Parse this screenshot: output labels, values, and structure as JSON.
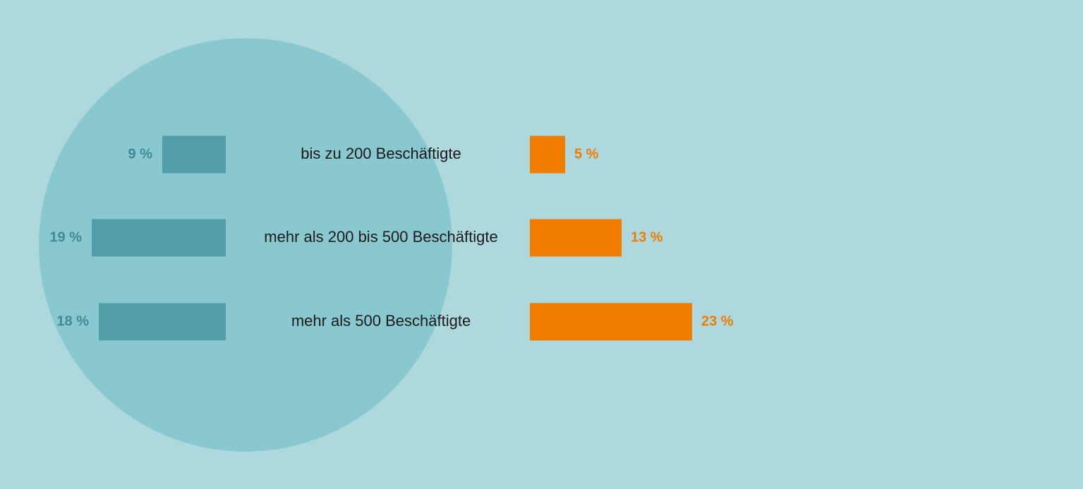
{
  "chart_data": {
    "type": "butterfly",
    "categories": [
      "bis zu 200 Beschäftigte",
      "mehr als 200 bis 500 Beschäftigte",
      "mehr als 500 Beschäftigte"
    ],
    "series": [
      {
        "color": "#529ea8",
        "values": [
          9,
          19,
          18
        ],
        "value_labels": [
          "9 %",
          "19 %",
          "18 %"
        ]
      },
      {
        "color": "#f07c00",
        "values": [
          5,
          13,
          23
        ],
        "value_labels": [
          "5 %",
          "13 %",
          "23 %"
        ]
      }
    ]
  }
}
